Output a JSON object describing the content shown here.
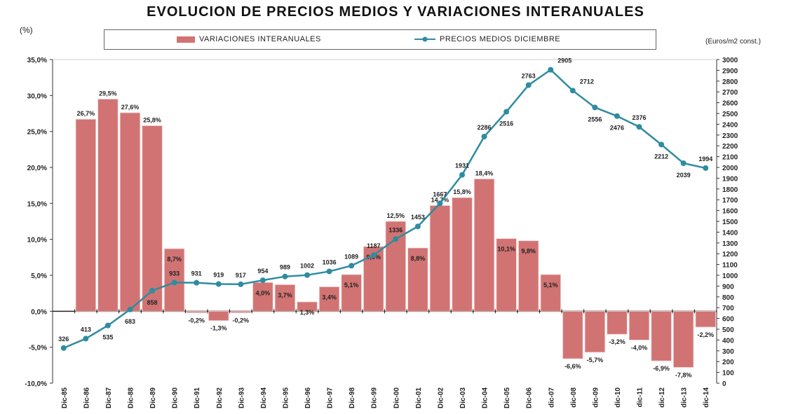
{
  "chart_data": {
    "type": "bar+line",
    "title": "EVOLUCION DE PRECIOS MEDIOS Y VARIACIONES INTERANUALES",
    "ylabel_left": "(%)",
    "ylabel_right": "(Euros/m2 const.)",
    "legend_position": "top",
    "grid": false,
    "categories": [
      "Dic-85",
      "Dic-86",
      "Dic-87",
      "Dic-88",
      "Dic-89",
      "Dic-90",
      "Dic-91",
      "Dic-92",
      "Dic-93",
      "Dic-94",
      "Dic-95",
      "Dic-96",
      "Dic-97",
      "Dic-98",
      "Dic-99",
      "Dic-00",
      "Dic-01",
      "Dic-02",
      "Dic-03",
      "Dic-04",
      "Dic-05",
      "Dic-06",
      "dic-07",
      "dic-08",
      "dic-09",
      "dic-10",
      "dic-11",
      "dic-12",
      "dic-13",
      "dic-14"
    ],
    "y_left": {
      "range": [
        -10,
        35
      ],
      "step": 5,
      "format": "percent"
    },
    "y_right": {
      "range": [
        0,
        3000
      ],
      "step": 100
    },
    "series": [
      {
        "name": "VARIACIONES INTERANUALES",
        "type": "bar",
        "axis": "left",
        "color": "#d27373",
        "values": [
          null,
          26.7,
          29.5,
          27.6,
          25.8,
          8.7,
          -0.2,
          -1.3,
          -0.2,
          4.0,
          3.7,
          1.3,
          3.4,
          5.1,
          9.0,
          12.5,
          8.8,
          14.7,
          15.8,
          18.4,
          10.1,
          9.8,
          5.1,
          -6.6,
          -5.7,
          -3.2,
          -4.0,
          -6.9,
          -7.8,
          -2.2
        ],
        "labels": [
          "",
          "26,7%",
          "29,5%",
          "27,6%",
          "25,8%",
          "8,7%",
          "-0,2%",
          "-1,3%",
          "-0,2%",
          "4,0%",
          "3,7%",
          "1,3%",
          "3,4%",
          "5,1%",
          "9,0%",
          "12,5%",
          "8,8%",
          "14,7%",
          "15,8%",
          "18,4%",
          "10,1%",
          "9,8%",
          "5,1%",
          "-6,6%",
          "-5,7%",
          "-3,2%",
          "-4,0%",
          "-6,9%",
          "-7,8%",
          "-2,2%"
        ]
      },
      {
        "name": "PRECIOS MEDIOS DICIEMBRE",
        "type": "line",
        "axis": "right",
        "color": "#2e8ca0",
        "values": [
          326,
          413,
          535,
          683,
          858,
          933,
          931,
          919,
          917,
          954,
          989,
          1002,
          1036,
          1089,
          1187,
          1336,
          1453,
          1667,
          1931,
          2286,
          2516,
          2763,
          2905,
          2712,
          2556,
          2476,
          2376,
          2212,
          2039,
          1994
        ]
      }
    ]
  }
}
